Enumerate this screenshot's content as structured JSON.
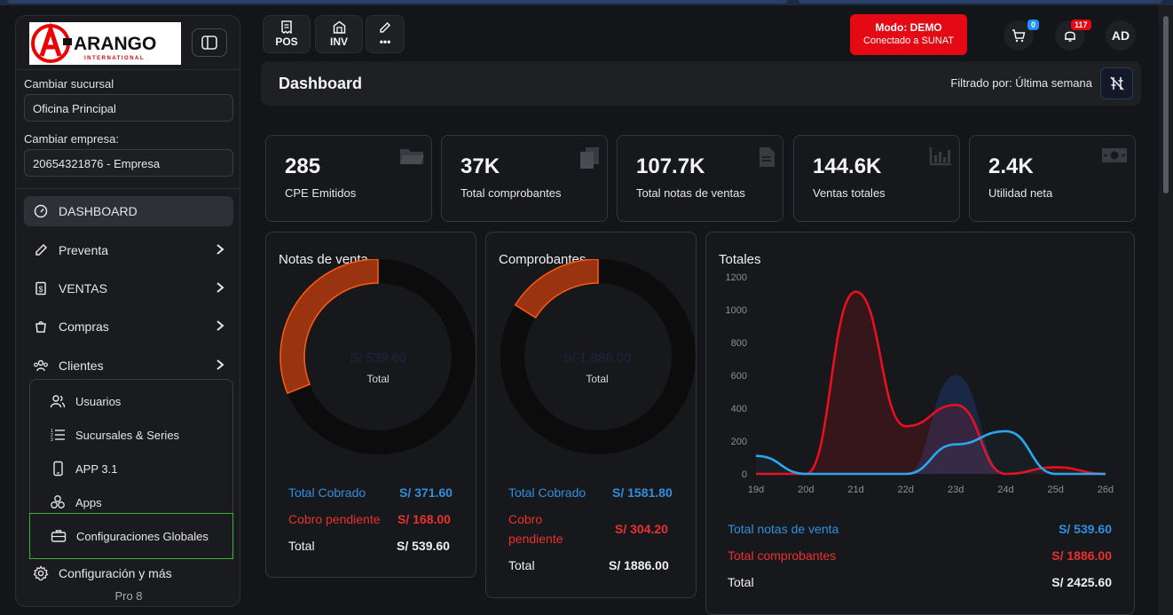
{
  "brand": {
    "logo_text": "ARANGO",
    "logo_sub": "INTERNATIONAL"
  },
  "sidebar": {
    "branch_label": "Cambiar sucursal",
    "branch_value": "Oficina Principal",
    "company_label": "Cambiar empresa:",
    "company_value": "20654321876 - Empresa",
    "nav": [
      {
        "label": "DASHBOARD",
        "icon": "gauge-icon"
      },
      {
        "label": "Preventa",
        "icon": "edit-icon"
      },
      {
        "label": "VENTAS",
        "icon": "receipt-icon"
      },
      {
        "label": "Compras",
        "icon": "bag-icon"
      },
      {
        "label": "Clientes",
        "icon": "users-icon"
      }
    ],
    "sub": [
      {
        "label": "Usuarios",
        "icon": "user-group-icon"
      },
      {
        "label": "Sucursales & Series",
        "icon": "numbered-list-icon"
      },
      {
        "label": "APP 3.1",
        "icon": "phone-icon"
      },
      {
        "label": "Apps",
        "icon": "cubes-icon"
      },
      {
        "label": "Configuraciones Globales",
        "icon": "briefcase-icon"
      }
    ],
    "settings_label": "Configuración y más",
    "version": "Pro 8"
  },
  "toolbar": {
    "pos": "POS",
    "inv": "INV",
    "more": "•••"
  },
  "mode": {
    "title": "Modo: DEMO",
    "subtitle": "Conectado a SUNAT"
  },
  "cart_count": "0",
  "notif_count": "117",
  "avatar": "AD",
  "header": {
    "title": "Dashboard",
    "filter": "Filtrado por: Última semana"
  },
  "kpis": [
    {
      "value": "285",
      "label": "CPE Emitidos",
      "icon": "folder-icon"
    },
    {
      "value": "37K",
      "label": "Total comprobantes",
      "icon": "files-icon"
    },
    {
      "value": "107.7K",
      "label": "Total notas de ventas",
      "icon": "document-icon"
    },
    {
      "value": "144.6K",
      "label": "Ventas totales",
      "icon": "bar-chart-icon"
    },
    {
      "value": "2.4K",
      "label": "Utilidad neta",
      "icon": "money-icon"
    }
  ],
  "notas": {
    "title": "Notas de venta",
    "center_amount": "S/ 539.60",
    "center_label": "Total",
    "cobrado_label": "Total Cobrado",
    "cobrado_value": "S/ 371.60",
    "pendiente_label": "Cobro pendiente",
    "pendiente_value": "S/ 168.00",
    "total_label": "Total",
    "total_value": "S/ 539.60",
    "pendiente_fraction": 0.311
  },
  "comprobantes": {
    "title": "Comprobantes",
    "center_amount": "S/ 1,886.00",
    "center_label": "Total",
    "cobrado_label": "Total Cobrado",
    "cobrado_value": "S/ 1581.80",
    "pendiente_label1": "Cobro",
    "pendiente_label2": "pendiente",
    "pendiente_value": "S/ 304.20",
    "total_label": "Total",
    "total_value": "S/ 1886.00",
    "pendiente_fraction": 0.161
  },
  "totales": {
    "title": "Totales",
    "notas_label": "Total notas de venta",
    "notas_value": "S/ 539.60",
    "comp_label": "Total comprobantes",
    "comp_value": "S/ 1886.00",
    "total_label": "Total",
    "total_value": "S/ 2425.60"
  },
  "chart_data": {
    "type": "area",
    "title": "Totales",
    "categories": [
      "19d",
      "20d",
      "21d",
      "22d",
      "23d",
      "24d",
      "25d",
      "26d"
    ],
    "ylim": [
      0,
      1200
    ],
    "yticks": [
      "0",
      "200",
      "400",
      "600",
      "800",
      "1000",
      "1200"
    ],
    "series": [
      {
        "values": [
          0,
          0,
          1110,
          290,
          420,
          0,
          40,
          0
        ],
        "color": "#e8101e"
      },
      {
        "values": [
          110,
          0,
          0,
          0,
          180,
          260,
          0,
          0
        ],
        "color": "#29a8f0"
      },
      {
        "values": [
          0,
          0,
          0,
          0,
          600,
          0,
          0,
          0
        ],
        "color": "#1b2a4a"
      }
    ],
    "grid": false
  },
  "colors": {
    "accent_red": "#e50914",
    "donut_orange": "#e0520c",
    "blue": "#2f8fe0",
    "red": "#e8322d"
  }
}
